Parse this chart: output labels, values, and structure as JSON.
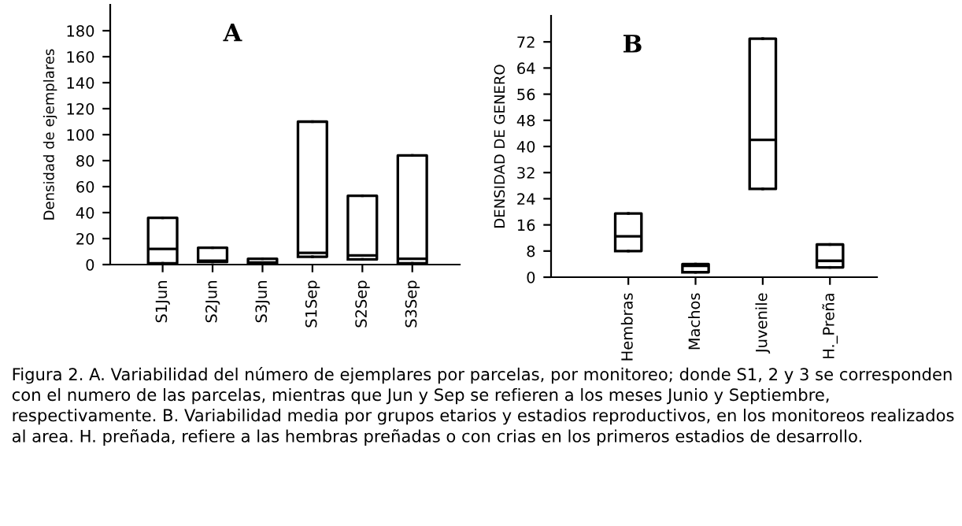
{
  "chart_data": [
    {
      "type": "box",
      "title": "A",
      "ylabel": "Densidad de ejemplares",
      "categories": [
        "S1Jun",
        "S2Jun",
        "S3Jun",
        "S1Sep",
        "S2Sep",
        "S3Sep"
      ],
      "boxes": [
        {
          "low": 1,
          "q1": 1,
          "median": 12,
          "q3": 36,
          "high": 36
        },
        {
          "low": 2,
          "q1": 2,
          "median": 3,
          "q3": 13,
          "high": 13
        },
        {
          "low": 0.5,
          "q1": 0.5,
          "median": 1.5,
          "q3": 4.5,
          "high": 4.5
        },
        {
          "low": 6,
          "q1": 6,
          "median": 9,
          "q3": 110,
          "high": 110
        },
        {
          "low": 4,
          "q1": 4,
          "median": 7,
          "q3": 53,
          "high": 53
        },
        {
          "low": 1,
          "q1": 1,
          "median": 4.5,
          "q3": 84,
          "high": 84
        }
      ],
      "ylim": [
        0,
        200
      ],
      "yticks": [
        0,
        20,
        40,
        60,
        80,
        100,
        120,
        140,
        160,
        180
      ],
      "grid": false,
      "annotations": [
        "Figura 2. A. Variabilidad del número de ejemplares por parcelas, por monitoreo; donde S1, 2 y 3 se corresponden con el numero de las parcelas, mientras que Jun y Sep se refieren a los meses Junio y Septiembre, respectivamente. B. Variabilidad media por grupos etarios y estadios reproductivos, en los monitoreos realizados al area. H. preñada, refiere a las hembras preñadas o con crias en los primeros estadios de desarrollo."
      ]
    },
    {
      "type": "box",
      "title": "B",
      "ylabel": "DENSIDAD DE GENERO",
      "categories": [
        "Hembras",
        "Machos",
        "Juvenile",
        "H._Preña"
      ],
      "boxes": [
        {
          "low": 8,
          "q1": 8,
          "median": 12.5,
          "q3": 19.5,
          "high": 19.5
        },
        {
          "low": 1.5,
          "q1": 1.5,
          "median": 3.5,
          "q3": 4,
          "high": 4
        },
        {
          "low": 27,
          "q1": 27,
          "median": 42,
          "q3": 73,
          "high": 73
        },
        {
          "low": 3,
          "q1": 3,
          "median": 5,
          "q3": 10,
          "high": 10
        }
      ],
      "ylim": [
        0,
        80
      ],
      "yticks": [
        0,
        8,
        16,
        24,
        32,
        40,
        48,
        56,
        64,
        72
      ],
      "grid": false
    }
  ]
}
